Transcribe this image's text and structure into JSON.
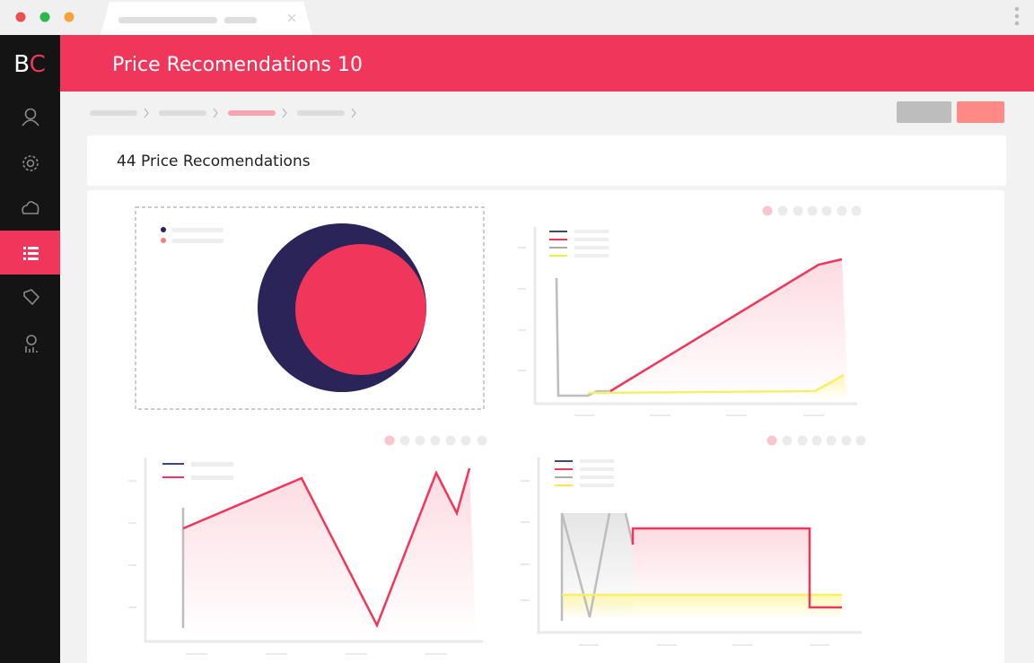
{
  "logo": {
    "first": "B",
    "second": "C"
  },
  "header": {
    "title": "Price Recomendations 10"
  },
  "card": {
    "title": "44 Price Recomendations"
  }
}
